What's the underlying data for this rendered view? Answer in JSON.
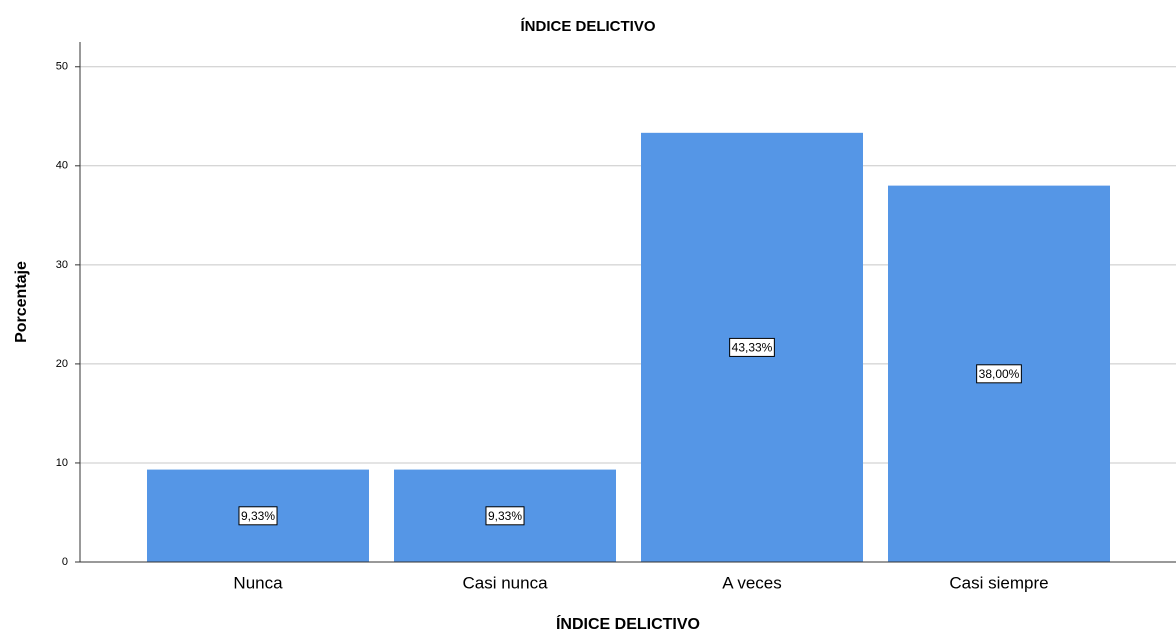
{
  "chart_data": {
    "type": "bar",
    "title": "ÍNDICE DELICTIVO",
    "x_label": "ÍNDICE DELICTIVO",
    "y_label": "Porcentaje",
    "categories": [
      "Nunca",
      "Casi nunca",
      "A veces",
      "Casi siempre"
    ],
    "values": [
      9.33,
      9.33,
      43.33,
      38.0
    ],
    "value_labels": [
      "9,33%",
      "9,33%",
      "43,33%",
      "38,00%"
    ],
    "color": "#5596e6",
    "ylim": [
      0,
      52.5
    ],
    "yticks": [
      0,
      10,
      20,
      30,
      40,
      50
    ],
    "grid": true
  }
}
